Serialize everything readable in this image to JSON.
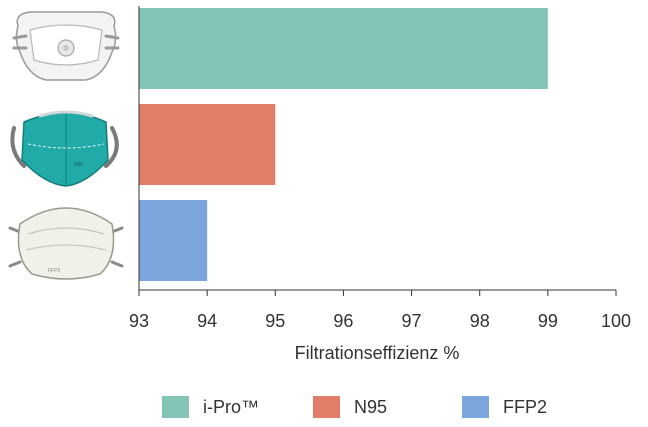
{
  "chart_data": {
    "type": "bar",
    "orientation": "horizontal",
    "categories": [
      "i-Pro™",
      "N95",
      "FFP2"
    ],
    "values": [
      99,
      95,
      94
    ],
    "colors": [
      "#82c4b6",
      "#e07e69",
      "#7ba6dd"
    ],
    "xlabel": "Filtrationseffizienz %",
    "xlim": [
      93,
      100
    ],
    "xticks": [
      93,
      94,
      95,
      96,
      97,
      98,
      99,
      100
    ],
    "grid": false,
    "legend_position": "bottom",
    "category_icons": [
      "valved-mask-icon",
      "kn95-mask-icon",
      "cup-mask-icon"
    ]
  },
  "category_icon_texts": [
    "N95",
    "FFP2"
  ]
}
